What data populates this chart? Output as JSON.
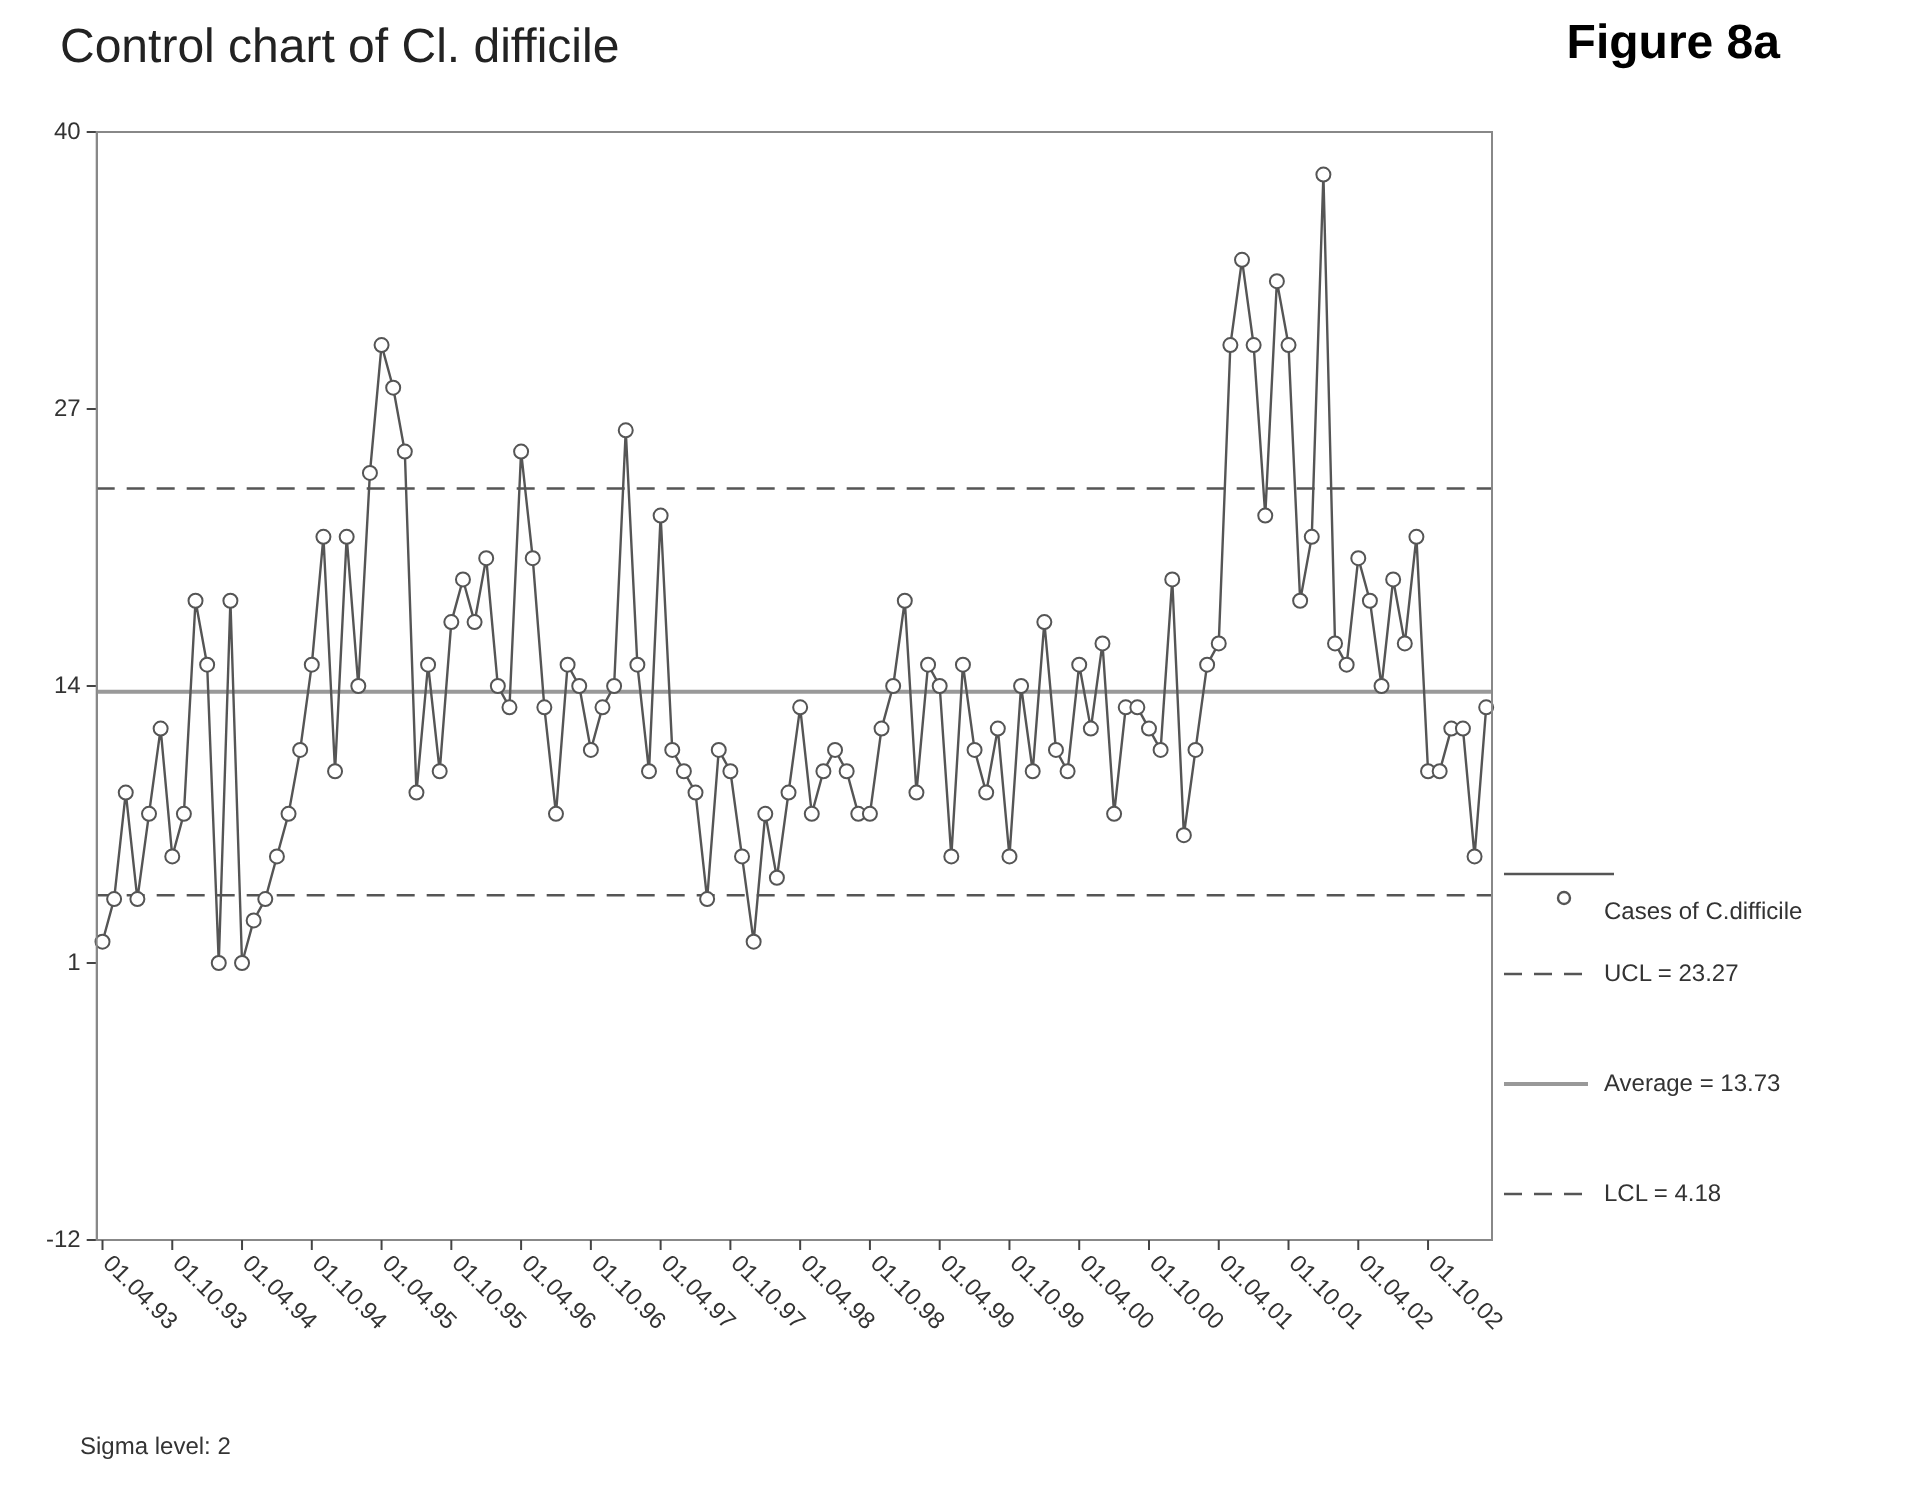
{
  "chart_data": {
    "type": "line",
    "title": "Control chart of Cl. difficile",
    "annotations": [
      "Figure 8a",
      "Sigma level: 2"
    ],
    "categories": [
      "01.04.93",
      null,
      null,
      null,
      null,
      null,
      "01.10.93",
      null,
      null,
      null,
      null,
      null,
      "01.04.94",
      null,
      null,
      null,
      null,
      null,
      "01.10.94",
      null,
      null,
      null,
      null,
      null,
      "01.04.95",
      null,
      null,
      null,
      null,
      null,
      "01.10.95",
      null,
      null,
      null,
      null,
      null,
      "01.04.96",
      null,
      null,
      null,
      null,
      null,
      "01.10.96",
      null,
      null,
      null,
      null,
      null,
      "01.04.97",
      null,
      null,
      null,
      null,
      null,
      "01.10.97",
      null,
      null,
      null,
      null,
      null,
      "01.04.98",
      null,
      null,
      null,
      null,
      null,
      "01.10.98",
      null,
      null,
      null,
      null,
      null,
      "01.04.99",
      null,
      null,
      null,
      null,
      null,
      "01.10.99",
      null,
      null,
      null,
      null,
      null,
      "01.04.00",
      null,
      null,
      null,
      null,
      null,
      "01.10.00",
      null,
      null,
      null,
      null,
      null,
      "01.04.01",
      null,
      null,
      null,
      null,
      null,
      "01.10.01",
      null,
      null,
      null,
      null,
      null,
      "01.04.02",
      null,
      null,
      null,
      null,
      null,
      "01.10.02",
      null,
      null,
      null,
      null,
      null
    ],
    "series": [
      {
        "name": "Cases of C.difficile",
        "color": "#555555",
        "values": [
          2,
          4,
          9,
          4,
          8,
          12,
          6,
          8,
          18,
          15,
          1,
          18,
          1,
          3,
          4,
          6,
          8,
          11,
          15,
          21,
          10,
          21,
          14,
          24,
          30,
          28,
          25,
          9,
          15,
          10,
          17,
          19,
          17,
          20,
          14,
          13,
          25,
          20,
          13,
          8,
          15,
          14,
          11,
          13,
          14,
          26,
          15,
          10,
          22,
          11,
          10,
          9,
          4,
          11,
          10,
          6,
          2,
          8,
          5,
          9,
          13,
          8,
          10,
          11,
          10,
          8,
          8,
          12,
          14,
          18,
          9,
          15,
          14,
          6,
          15,
          11,
          9,
          12,
          6,
          14,
          10,
          17,
          11,
          10,
          15,
          12,
          16,
          8,
          13,
          13,
          12,
          11,
          19,
          7,
          11,
          15,
          16,
          30,
          34,
          30,
          22,
          33,
          30,
          18,
          21,
          38,
          16,
          15,
          20,
          18,
          14,
          19,
          16,
          21,
          10,
          10,
          12,
          12,
          6,
          13
        ]
      }
    ],
    "ref_lines": [
      {
        "axis": "y",
        "value": 23.27,
        "label": "UCL = 23.27",
        "color": "#555555",
        "line_style": "dashed"
      },
      {
        "axis": "y",
        "value": 13.73,
        "label": "Average = 13.73",
        "color": "#999999",
        "line_style": "solid"
      },
      {
        "axis": "y",
        "value": 4.18,
        "label": "LCL = 4.18",
        "color": "#555555",
        "line_style": "dashed"
      }
    ],
    "ylim": [
      -12,
      40
    ],
    "yticks": [
      -12,
      1,
      14,
      27,
      40
    ],
    "grid": false,
    "legend": "right",
    "marker": "circle",
    "line_style": "solid"
  }
}
